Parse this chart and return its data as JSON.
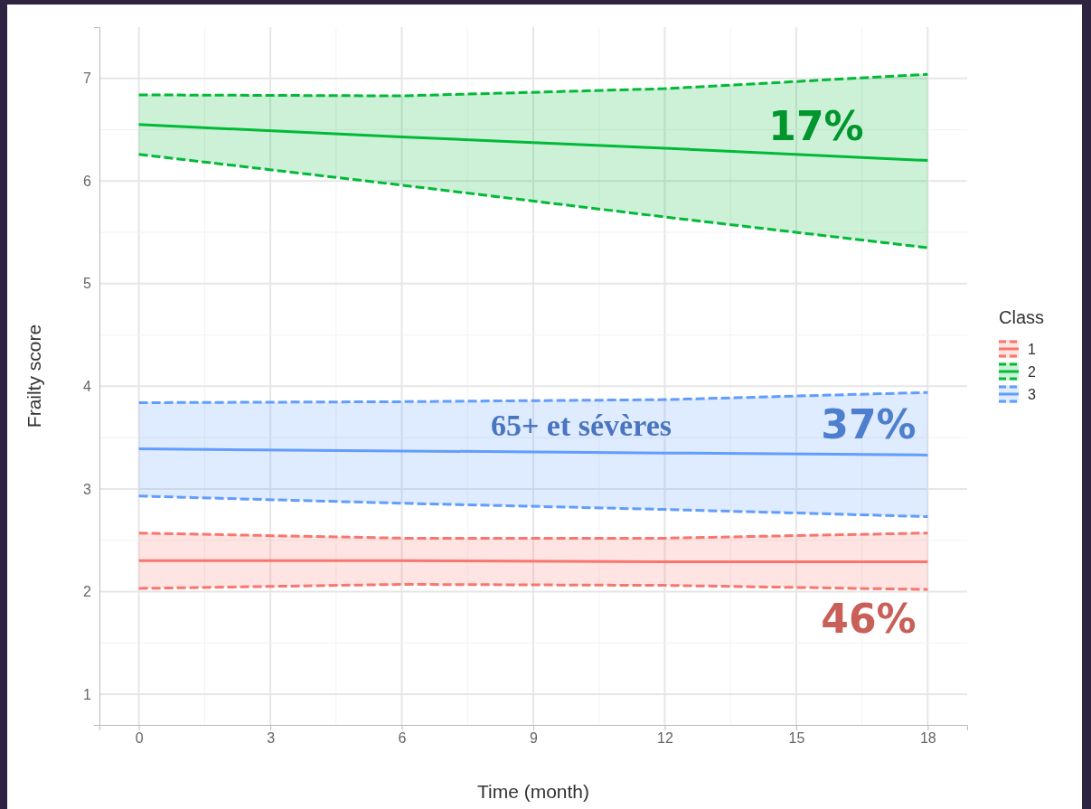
{
  "chart_data": {
    "type": "line",
    "xlabel": "Time (month)",
    "ylabel": "Frailty score",
    "legend_title": "Class",
    "legend": "right",
    "grid": true,
    "line_style": "solid",
    "marker": "none",
    "xlim": [
      -0.9,
      18.9
    ],
    "xticks": [
      0,
      3,
      6,
      9,
      12,
      15,
      18
    ],
    "ylim": [
      0.7,
      7.5
    ],
    "yticks": [
      1,
      2,
      3,
      4,
      5,
      6,
      7
    ],
    "x": [
      0,
      6,
      12,
      18
    ],
    "series": [
      {
        "name": "1",
        "color": "#f8766d",
        "values": [
          2.3,
          2.3,
          2.29,
          2.29
        ],
        "lower": [
          2.03,
          2.07,
          2.06,
          2.02
        ],
        "upper": [
          2.57,
          2.52,
          2.52,
          2.57
        ]
      },
      {
        "color": "#f8766d",
        "line_style": "dashed",
        "values": [
          2.03,
          2.07,
          2.06,
          2.02
        ]
      },
      {
        "color": "#f8766d",
        "line_style": "dashed",
        "values": [
          2.57,
          2.52,
          2.52,
          2.57
        ]
      },
      {
        "name": "2",
        "color": "#00ba38",
        "values": [
          6.55,
          6.43,
          6.32,
          6.2
        ],
        "lower": [
          6.26,
          5.96,
          5.65,
          5.35
        ],
        "upper": [
          6.84,
          6.83,
          6.9,
          7.04
        ]
      },
      {
        "color": "#00ba38",
        "line_style": "dashed",
        "values": [
          6.26,
          5.96,
          5.65,
          5.35
        ]
      },
      {
        "color": "#00ba38",
        "line_style": "dashed",
        "values": [
          6.84,
          6.83,
          6.9,
          7.04
        ]
      },
      {
        "name": "3",
        "color": "#619cff",
        "values": [
          3.39,
          3.37,
          3.35,
          3.33
        ],
        "lower": [
          2.93,
          2.86,
          2.8,
          2.73
        ],
        "upper": [
          3.84,
          3.85,
          3.87,
          3.94
        ]
      },
      {
        "color": "#619cff",
        "line_style": "dashed",
        "values": [
          2.93,
          2.86,
          2.8,
          2.73
        ]
      },
      {
        "color": "#619cff",
        "line_style": "dashed",
        "values": [
          3.84,
          3.85,
          3.87,
          3.94
        ]
      }
    ],
    "annotations": [
      "17%",
      "37%",
      "65+ et sévères",
      "46%"
    ]
  }
}
